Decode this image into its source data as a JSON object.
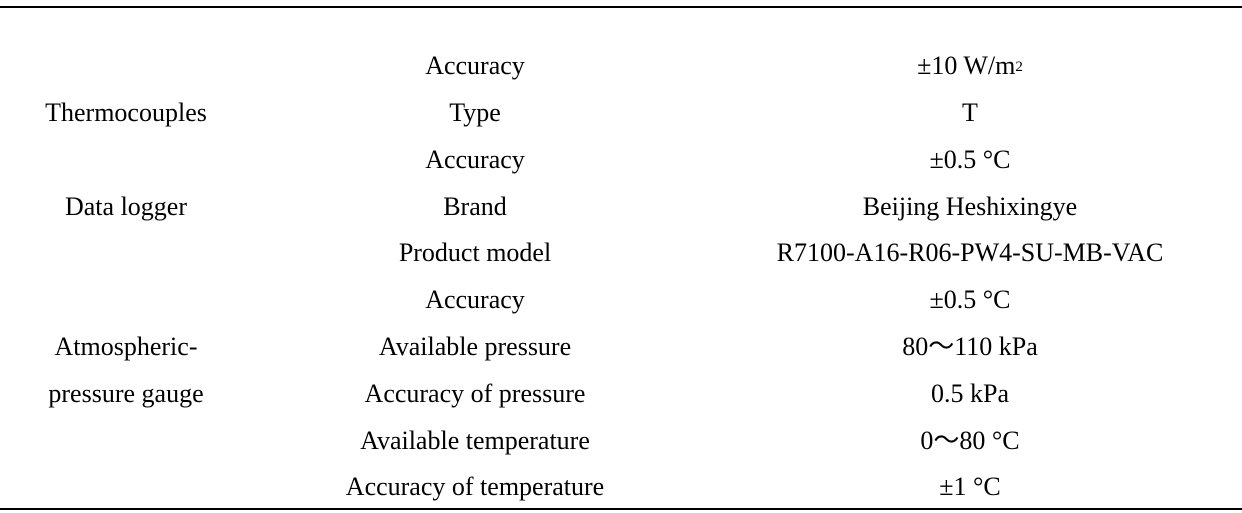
{
  "table": {
    "groups": {
      "thermocouples": "Thermocouples",
      "data_logger": "Data logger",
      "pressure_gauge_line1": "Atmospheric-",
      "pressure_gauge_line2": "pressure gauge"
    },
    "rows": [
      {
        "parameter": "Accuracy",
        "value": "±10 W/m",
        "value_sup": "2"
      },
      {
        "parameter": "Type",
        "value": "T"
      },
      {
        "parameter": "Accuracy",
        "value": "±0.5 °C"
      },
      {
        "parameter": "Brand",
        "value": "Beijing Heshixingye"
      },
      {
        "parameter": "Product model",
        "value": "R7100-A16-R06-PW4-SU-MB-VAC"
      },
      {
        "parameter": "Accuracy",
        "value": "±0.5 °C"
      },
      {
        "parameter": "Available pressure",
        "value": "80～110 kPa"
      },
      {
        "parameter": "Accuracy of pressure",
        "value": "0.5 kPa"
      },
      {
        "parameter": "Available temperature",
        "value": "0～80 °C"
      },
      {
        "parameter": "Accuracy of temperature",
        "value": "±1 °C"
      }
    ]
  }
}
